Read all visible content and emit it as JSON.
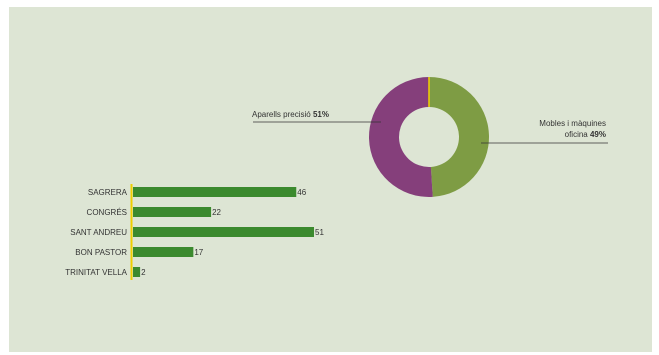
{
  "colors": {
    "background": "#dde5d4",
    "bar": "#3b8a2e",
    "axis": "#f0d000",
    "pie_moc": "#7e9c44",
    "pie_ap": "#853f7b",
    "text": "#333333"
  },
  "chart_data": [
    {
      "type": "pie",
      "donut": true,
      "slices": [
        {
          "label": "Mobles i màquines oficina",
          "label_line1": "Mobles i màquines",
          "label_line2": "oficina",
          "percent_label": "49%",
          "value": 49,
          "color": "#7e9c44"
        },
        {
          "label": "Aparells precisió",
          "label_line1": "Aparells precisió",
          "percent_label": "51%",
          "value": 51,
          "color": "#853f7b"
        }
      ]
    },
    {
      "type": "bar",
      "orientation": "horizontal",
      "categories": [
        "SAGRERA",
        "CONGRÉS",
        "SANT ANDREU",
        "BON PASTOR",
        "TRINITAT VELLA"
      ],
      "values": [
        46,
        22,
        51,
        17,
        2
      ],
      "value_labels": [
        "46",
        "22",
        "51",
        "17",
        "2"
      ],
      "xlim": [
        0,
        51
      ],
      "grid": false
    }
  ]
}
